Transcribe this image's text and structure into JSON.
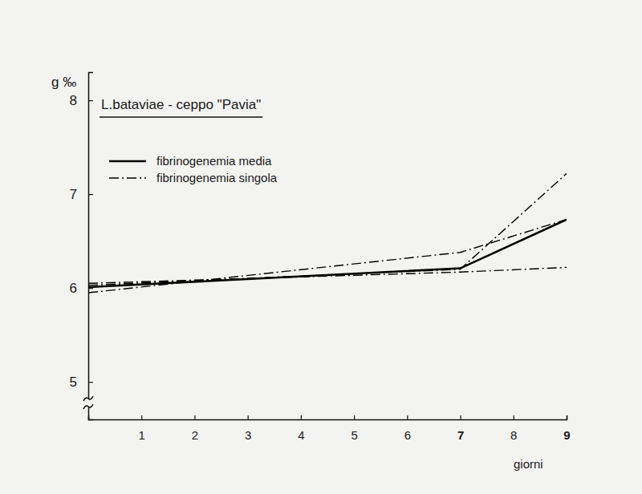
{
  "chart_data": {
    "type": "line",
    "title": "L.bataviae - ceppo \"Pavia\"",
    "x_label": "giorni",
    "y_label": "g ‰",
    "x": [
      0,
      7,
      9
    ],
    "series": [
      {
        "name": "fibrinogenemia media",
        "color": "#000000",
        "line_style": "solid",
        "values": [
          6.01,
          6.21,
          6.73
        ]
      },
      {
        "name": "fibrinogenemia singola",
        "color": "#000000",
        "line_style": "dashdot",
        "values": [
          5.95,
          6.38,
          6.73
        ]
      },
      {
        "name": "fibrinogenemia singola",
        "color": "#000000",
        "line_style": "dashdot",
        "values": [
          6.05,
          6.17,
          6.22
        ]
      },
      {
        "name": "fibrinogenemia singola",
        "color": "#000000",
        "line_style": "dashdot",
        "values": [
          6.03,
          6.2,
          7.22
        ]
      }
    ],
    "xlim": [
      0,
      9
    ],
    "xticks": [
      1,
      2,
      3,
      4,
      5,
      6,
      7,
      8,
      9
    ],
    "ylim": [
      4.6,
      8.3
    ],
    "yticks": [
      5,
      6,
      7,
      8
    ],
    "grid": false,
    "legend": "upper left"
  }
}
